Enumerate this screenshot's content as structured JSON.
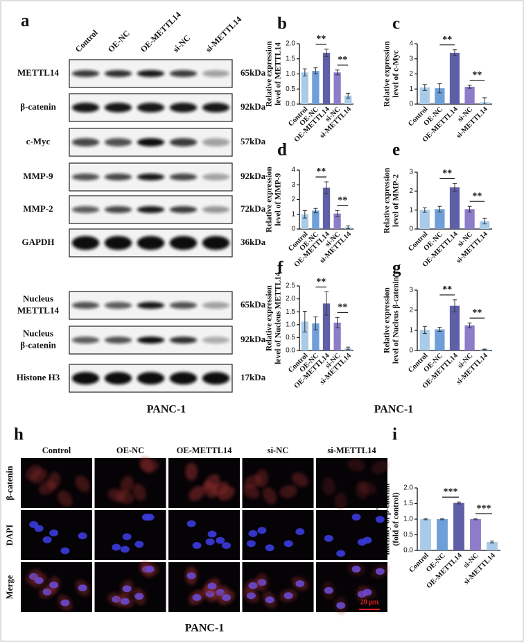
{
  "panel_labels": [
    "a",
    "b",
    "c",
    "d",
    "e",
    "f",
    "g",
    "h",
    "i"
  ],
  "blot": {
    "lanes": [
      "Control",
      "OE-NC",
      "OE-METTL14",
      "si-NC",
      "si-METTL14"
    ],
    "rows": [
      {
        "label": [
          "METTL14"
        ],
        "size": "65kDa"
      },
      {
        "label": [
          "β-catenin"
        ],
        "size": "92kDa"
      },
      {
        "label": [
          "c-Myc"
        ],
        "size": "57kDa"
      },
      {
        "label": [
          "MMP-9"
        ],
        "size": "92kDa"
      },
      {
        "label": [
          "MMP-2"
        ],
        "size": "72kDa"
      },
      {
        "label": [
          "GAPDH"
        ],
        "size": "36kDa"
      },
      {
        "label": [
          "Nucleus",
          "METTL14"
        ],
        "size": "65kDa"
      },
      {
        "label": [
          "Nucleus",
          "β-catenin"
        ],
        "size": "92kDa"
      },
      {
        "label": [
          "Histone H3"
        ],
        "size": "17kDa"
      }
    ],
    "cell_line": "PANC-1"
  },
  "charts_caption": "PANC-1",
  "chart_data": [
    {
      "type": "bar",
      "ylabel": [
        "Relative expression",
        "level of METTL14"
      ],
      "categories": [
        "Control",
        "OE-NC",
        "OE-METTL14",
        "si-NC",
        "si-METTL14"
      ],
      "values": [
        1.05,
        1.1,
        1.7,
        1.05,
        0.28
      ],
      "errors": [
        0.12,
        0.1,
        0.12,
        0.08,
        0.08
      ],
      "colors": [
        "#a9cbea",
        "#6e9fd8",
        "#5f5fa8",
        "#8d7cc9",
        "#a9cbea"
      ],
      "ylim": [
        0,
        2
      ],
      "yticks": [
        {
          "value": 0,
          "label": "0.0"
        },
        0.5,
        {
          "value": 1,
          "label": "1.0"
        },
        1.5,
        {
          "value": 2,
          "label": "2.0"
        }
      ],
      "annotations": [
        "**",
        "**"
      ]
    },
    {
      "type": "bar",
      "ylabel": [
        "Relative expression",
        "level of c-Myc"
      ],
      "categories": [
        "Control",
        "OE-NC",
        "OE-METTL14",
        "si-NC",
        "si-METTL14"
      ],
      "values": [
        1.1,
        1.05,
        3.4,
        1.15,
        0.12
      ],
      "errors": [
        0.2,
        0.3,
        0.2,
        0.1,
        0.3
      ],
      "colors": [
        "#a9cbea",
        "#6e9fd8",
        "#5f5fa8",
        "#8d7cc9",
        "#a9cbea"
      ],
      "ylim": [
        0,
        4
      ],
      "yticks": [
        0,
        1,
        2,
        3,
        4
      ],
      "annotations": [
        "**",
        "**"
      ]
    },
    {
      "type": "bar",
      "ylabel": [
        "Relative expression",
        "level of MMP-9"
      ],
      "categories": [
        "Control",
        "OE-NC",
        "OE-METTL14",
        "si-NC",
        "si-METTL14"
      ],
      "values": [
        1.0,
        1.25,
        2.8,
        1.05,
        0.12
      ],
      "errors": [
        0.25,
        0.15,
        0.4,
        0.2,
        0.1
      ],
      "colors": [
        "#a9cbea",
        "#6e9fd8",
        "#5f5fa8",
        "#8d7cc9",
        "#a9cbea"
      ],
      "ylim": [
        0,
        4
      ],
      "yticks": [
        0,
        1,
        2,
        3,
        4
      ],
      "annotations": [
        "**",
        "**"
      ]
    },
    {
      "type": "bar",
      "ylabel": [
        "Relative expression",
        "level of MMP-2"
      ],
      "categories": [
        "Control",
        "OE-NC",
        "OE-METTL14",
        "si-NC",
        "si-METTL14"
      ],
      "values": [
        1.0,
        1.05,
        2.2,
        1.05,
        0.42
      ],
      "errors": [
        0.12,
        0.15,
        0.2,
        0.15,
        0.15
      ],
      "colors": [
        "#a9cbea",
        "#6e9fd8",
        "#5f5fa8",
        "#8d7cc9",
        "#a9cbea"
      ],
      "ylim": [
        0,
        3
      ],
      "yticks": [
        0,
        1,
        2,
        3
      ],
      "annotations": [
        "**",
        "**"
      ]
    },
    {
      "type": "bar",
      "ylabel": [
        "Relative expression",
        "level of Nucleus METTL14"
      ],
      "categories": [
        "Control",
        "OE-NC",
        "OE-METTL14",
        "si-NC",
        "si-METTL14"
      ],
      "values": [
        1.12,
        1.05,
        1.82,
        1.08,
        0.08
      ],
      "errors": [
        0.4,
        0.25,
        0.45,
        0.2,
        0.05
      ],
      "colors": [
        "#a9cbea",
        "#6e9fd8",
        "#5f5fa8",
        "#8d7cc9",
        "#a9cbea"
      ],
      "ylim": [
        0,
        2.5
      ],
      "yticks": [
        {
          "value": 0,
          "label": "0.0"
        },
        0.5,
        {
          "value": 1,
          "label": "1.0"
        },
        1.5,
        {
          "value": 2,
          "label": "2.0"
        },
        2.5
      ],
      "annotations": [
        "**",
        "**"
      ]
    },
    {
      "type": "bar",
      "ylabel": [
        "Relative expression",
        "level of Nucleus β-catenin"
      ],
      "categories": [
        "Control",
        "OE-NC",
        "OE-METTL14",
        "si-NC",
        "si-METTL14"
      ],
      "values": [
        1.02,
        1.05,
        2.22,
        1.25,
        0.05
      ],
      "errors": [
        0.18,
        0.1,
        0.3,
        0.12,
        0.02
      ],
      "colors": [
        "#a9cbea",
        "#6e9fd8",
        "#5f5fa8",
        "#8d7cc9",
        "#a9cbea"
      ],
      "ylim": [
        0,
        3
      ],
      "yticks": [
        0,
        1,
        2,
        3
      ],
      "annotations": [
        "**",
        "**"
      ]
    },
    {
      "type": "bar",
      "ylabel": [
        "Relative fluorescence",
        "intensity of β-catenin",
        "(fold of control)"
      ],
      "categories": [
        "Control",
        "OE-NC",
        "OE-METTL14",
        "si-NC",
        "si-METTL14"
      ],
      "values": [
        1.0,
        1.0,
        1.52,
        1.0,
        0.27
      ],
      "errors": [
        0.02,
        0.02,
        0.03,
        0.02,
        0.03
      ],
      "colors": [
        "#a9cbea",
        "#6e9fd8",
        "#5f5fa8",
        "#8d7cc9",
        "#a9cbea"
      ],
      "ylim": [
        0,
        2
      ],
      "yticks": [
        {
          "value": 0,
          "label": "0.0"
        },
        0.5,
        {
          "value": 1,
          "label": "1.0"
        },
        1.5,
        {
          "value": 2,
          "label": "2.0"
        }
      ],
      "annotations": [
        "***",
        "***"
      ]
    }
  ],
  "microscopy": {
    "columns": [
      "Control",
      "OE-NC",
      "OE-METTL14",
      "si-NC",
      "si-METTL14"
    ],
    "rows": [
      "β-catenin",
      "DAPI",
      "Merge"
    ],
    "cell_line": "PANC-1",
    "scale_bar": "20 μm"
  }
}
